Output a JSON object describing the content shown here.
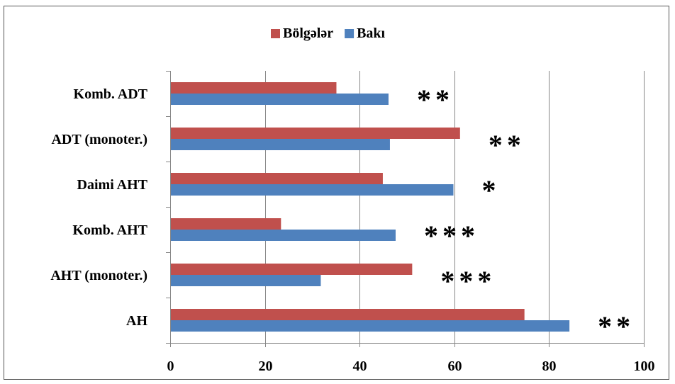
{
  "chart_data": {
    "type": "bar",
    "orientation": "horizontal",
    "categories": [
      "AH",
      "AHT (monoter.)",
      "Komb. AHT",
      "Daimi AHT",
      "ADT (monoter.)",
      "Komb. ADT"
    ],
    "series": [
      {
        "name": "Bölgələr",
        "color": "#c0504d",
        "values": [
          74.8,
          51.1,
          23.4,
          44.9,
          61.2,
          35.1
        ]
      },
      {
        "name": "Bakı",
        "color": "#4f81bd",
        "values": [
          84.3,
          31.8,
          47.6,
          59.8,
          46.4,
          46.1
        ]
      }
    ],
    "significance": [
      "**",
      "***",
      "***",
      "*",
      "**",
      "**"
    ],
    "xlim": [
      0,
      100
    ],
    "xticks": [
      0,
      20,
      40,
      60,
      80,
      100
    ],
    "xtick_labels": [
      "0",
      "20",
      "40",
      "60",
      "80",
      "100"
    ],
    "legend_position": "top-center",
    "grid": "vertical major lines"
  }
}
